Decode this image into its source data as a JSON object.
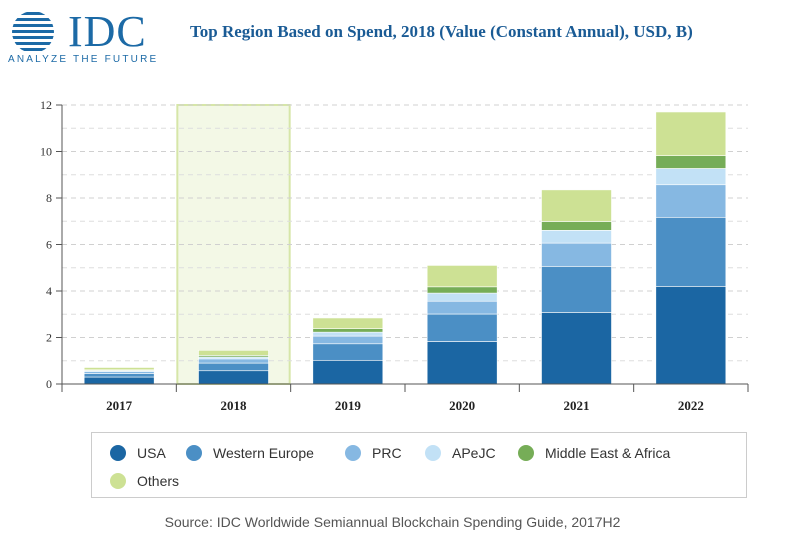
{
  "header": {
    "logo_text": "IDC",
    "logo_tagline": "ANALYZE THE FUTURE",
    "title": "Top Region Based on Spend, 2018 (Value (Constant Annual), USD, B)"
  },
  "footer": {
    "source": "Source: IDC Worldwide Semiannual Blockchain Spending Guide, 2017H2"
  },
  "colors": {
    "brand": "#1c6aa6",
    "title": "#1a5b95",
    "highlight_fill": "#f3f8e6",
    "highlight_border": "#d6e6a8"
  },
  "chart_data": {
    "type": "bar",
    "stacked": true,
    "title": "Top Region Based on Spend, 2018 (Value (Constant Annual), USD, B)",
    "categories": [
      "2017",
      "2018",
      "2019",
      "2020",
      "2021",
      "2022"
    ],
    "highlighted_category": "2018",
    "ylim": [
      0,
      12
    ],
    "yticks": [
      "0",
      "2",
      "4",
      "6",
      "8",
      "10",
      "12"
    ],
    "grid": true,
    "legend_position": "bottom",
    "series": [
      {
        "name": "USA",
        "color": "#1b66a3",
        "values": [
          0.3,
          0.57,
          1.02,
          1.83,
          3.08,
          4.2
        ]
      },
      {
        "name": "Western Europe",
        "color": "#4b8fc5",
        "values": [
          0.15,
          0.33,
          0.71,
          1.18,
          1.98,
          2.97
        ]
      },
      {
        "name": "PRC",
        "color": "#86b8e2",
        "values": [
          0.09,
          0.18,
          0.33,
          0.55,
          1.0,
          1.4
        ]
      },
      {
        "name": "APeJC",
        "color": "#c2e1f6",
        "values": [
          0.04,
          0.08,
          0.17,
          0.35,
          0.55,
          0.7
        ]
      },
      {
        "name": "Middle East & Africa",
        "color": "#76ad57",
        "values": [
          0.03,
          0.07,
          0.15,
          0.27,
          0.38,
          0.55
        ]
      },
      {
        "name": "Others",
        "color": "#cde194",
        "values": [
          0.1,
          0.22,
          0.46,
          0.92,
          1.36,
          1.88
        ]
      }
    ]
  }
}
